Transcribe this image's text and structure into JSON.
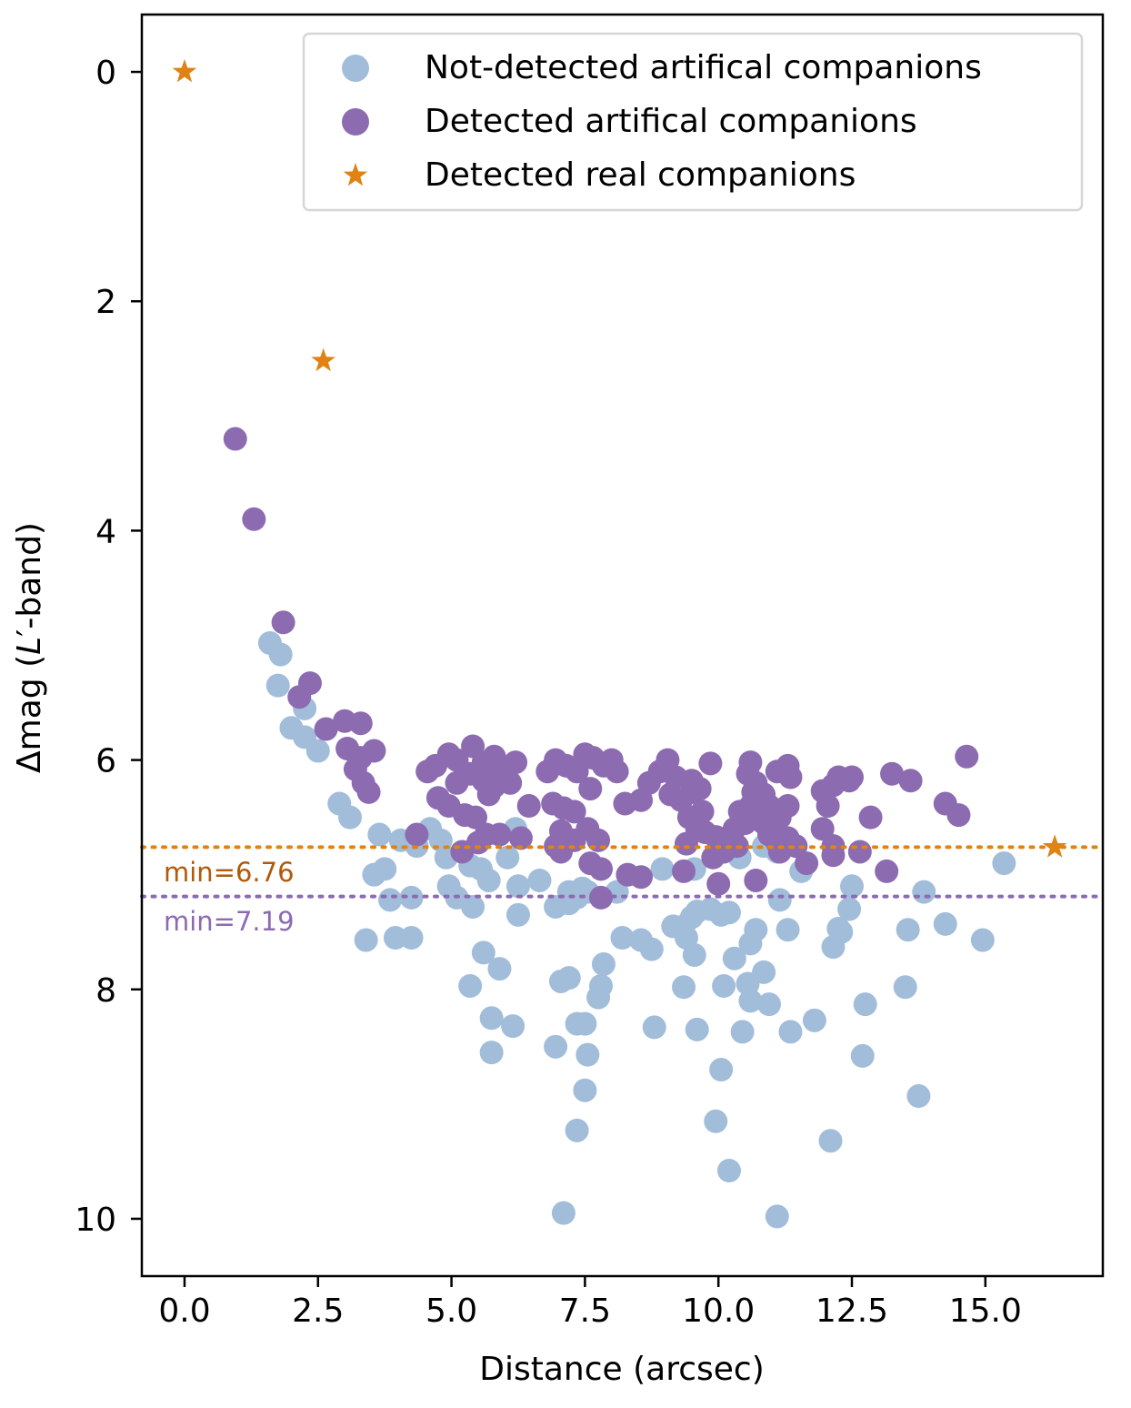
{
  "chart_data": {
    "type": "scatter",
    "xlabel": "Distance (arcsec)",
    "ylabel_parts": [
      "Δmag (",
      "L",
      "′-band)"
    ],
    "xlim": [
      -0.8,
      17.2
    ],
    "ylim": [
      10.5,
      -0.5
    ],
    "xticks": [
      0.0,
      2.5,
      5.0,
      7.5,
      10.0,
      12.5,
      15.0
    ],
    "xtick_labels": [
      "0.0",
      "2.5",
      "5.0",
      "7.5",
      "10.0",
      "12.5",
      "15.0"
    ],
    "yticks": [
      0,
      2,
      4,
      6,
      8,
      10
    ],
    "ytick_labels": [
      "0",
      "2",
      "4",
      "6",
      "8",
      "10"
    ],
    "grid": false,
    "legend_position": "top-right",
    "colors": {
      "not_detected": "#a1bdd9",
      "detected": "#8c6bb1",
      "real": "#e08214",
      "min_real_text": "#b05a0a",
      "min_detected_text": "#8c6bb1"
    },
    "hlines": [
      {
        "name": "min-real-line",
        "y": 6.76,
        "color": "#e08214",
        "label": "min=6.76",
        "label_color": "#b05a0a"
      },
      {
        "name": "min-detected-line",
        "y": 7.19,
        "color": "#8c6bb1",
        "label": "min=7.19",
        "label_color": "#8c6bb1"
      }
    ],
    "series": [
      {
        "name": "Not-detected artifical companions",
        "marker": "circle",
        "color": "#a1bdd9",
        "points": [
          [
            1.6,
            4.98
          ],
          [
            1.8,
            5.08
          ],
          [
            1.75,
            5.35
          ],
          [
            2.25,
            5.55
          ],
          [
            2.0,
            5.72
          ],
          [
            2.25,
            5.8
          ],
          [
            2.5,
            5.92
          ],
          [
            2.9,
            6.38
          ],
          [
            3.1,
            6.5
          ],
          [
            3.65,
            6.65
          ],
          [
            3.75,
            6.95
          ],
          [
            3.55,
            7.0
          ],
          [
            3.85,
            7.22
          ],
          [
            4.25,
            7.2
          ],
          [
            4.05,
            6.7
          ],
          [
            4.35,
            6.75
          ],
          [
            4.6,
            6.6
          ],
          [
            4.8,
            6.7
          ],
          [
            4.9,
            6.85
          ],
          [
            4.95,
            7.1
          ],
          [
            5.1,
            7.2
          ],
          [
            5.4,
            7.28
          ],
          [
            5.35,
            6.92
          ],
          [
            5.55,
            6.95
          ],
          [
            5.7,
            7.05
          ],
          [
            6.05,
            6.85
          ],
          [
            6.2,
            6.6
          ],
          [
            6.25,
            7.1
          ],
          [
            6.65,
            7.05
          ],
          [
            6.25,
            7.35
          ],
          [
            6.95,
            7.28
          ],
          [
            7.2,
            7.15
          ],
          [
            7.35,
            7.2
          ],
          [
            7.45,
            7.12
          ],
          [
            7.55,
            7.15
          ],
          [
            8.1,
            7.15
          ],
          [
            7.2,
            7.25
          ],
          [
            3.4,
            7.57
          ],
          [
            3.95,
            7.55
          ],
          [
            4.25,
            7.55
          ],
          [
            5.6,
            7.68
          ],
          [
            5.35,
            7.97
          ],
          [
            5.9,
            7.82
          ],
          [
            5.75,
            8.25
          ],
          [
            6.15,
            8.32
          ],
          [
            5.75,
            8.55
          ],
          [
            6.95,
            8.5
          ],
          [
            7.05,
            7.93
          ],
          [
            7.2,
            7.9
          ],
          [
            7.35,
            8.3
          ],
          [
            7.5,
            8.3
          ],
          [
            7.85,
            7.78
          ],
          [
            7.8,
            7.97
          ],
          [
            7.75,
            8.07
          ],
          [
            7.55,
            8.57
          ],
          [
            7.5,
            8.88
          ],
          [
            7.35,
            9.23
          ],
          [
            7.1,
            9.95
          ],
          [
            8.2,
            7.55
          ],
          [
            8.55,
            7.57
          ],
          [
            8.75,
            7.65
          ],
          [
            8.8,
            8.33
          ],
          [
            8.95,
            6.95
          ],
          [
            9.15,
            7.45
          ],
          [
            9.35,
            7.45
          ],
          [
            9.4,
            7.55
          ],
          [
            9.5,
            7.37
          ],
          [
            9.6,
            7.32
          ],
          [
            9.55,
            7.7
          ],
          [
            9.35,
            7.98
          ],
          [
            9.6,
            8.35
          ],
          [
            9.55,
            6.95
          ],
          [
            9.85,
            7.3
          ],
          [
            10.05,
            7.35
          ],
          [
            10.2,
            7.33
          ],
          [
            10.3,
            7.73
          ],
          [
            10.1,
            7.97
          ],
          [
            10.05,
            8.7
          ],
          [
            9.95,
            9.15
          ],
          [
            10.2,
            9.58
          ],
          [
            10.45,
            8.37
          ],
          [
            10.6,
            7.6
          ],
          [
            10.7,
            7.48
          ],
          [
            10.55,
            7.95
          ],
          [
            10.6,
            8.1
          ],
          [
            10.85,
            7.85
          ],
          [
            10.95,
            8.13
          ],
          [
            10.4,
            6.85
          ],
          [
            10.85,
            6.75
          ],
          [
            11.1,
            6.8
          ],
          [
            11.15,
            7.22
          ],
          [
            11.3,
            7.48
          ],
          [
            11.35,
            8.37
          ],
          [
            11.1,
            9.98
          ],
          [
            11.55,
            6.97
          ],
          [
            11.8,
            8.27
          ],
          [
            12.1,
            9.32
          ],
          [
            12.15,
            7.63
          ],
          [
            12.25,
            7.47
          ],
          [
            12.3,
            7.5
          ],
          [
            12.45,
            7.3
          ],
          [
            12.5,
            7.1
          ],
          [
            12.75,
            8.13
          ],
          [
            12.7,
            8.58
          ],
          [
            13.5,
            7.98
          ],
          [
            13.55,
            7.48
          ],
          [
            13.85,
            7.15
          ],
          [
            13.75,
            8.93
          ],
          [
            14.25,
            7.43
          ],
          [
            14.95,
            7.57
          ],
          [
            15.35,
            6.9
          ]
        ]
      },
      {
        "name": "Detected artifical companions",
        "marker": "circle",
        "color": "#8c6bb1",
        "points": [
          [
            0.95,
            3.2
          ],
          [
            1.3,
            3.9
          ],
          [
            1.85,
            4.8
          ],
          [
            2.35,
            5.33
          ],
          [
            2.15,
            5.45
          ],
          [
            2.65,
            5.73
          ],
          [
            3.0,
            5.66
          ],
          [
            3.3,
            5.68
          ],
          [
            3.05,
            5.9
          ],
          [
            3.3,
            5.98
          ],
          [
            3.55,
            5.92
          ],
          [
            3.2,
            6.08
          ],
          [
            3.35,
            6.2
          ],
          [
            3.45,
            6.28
          ],
          [
            4.55,
            6.1
          ],
          [
            4.7,
            6.05
          ],
          [
            4.95,
            5.95
          ],
          [
            5.1,
            6.0
          ],
          [
            5.4,
            5.88
          ],
          [
            5.6,
            6.02
          ],
          [
            5.8,
            5.97
          ],
          [
            5.1,
            6.2
          ],
          [
            5.35,
            6.12
          ],
          [
            5.6,
            6.18
          ],
          [
            5.8,
            6.23
          ],
          [
            5.7,
            6.3
          ],
          [
            5.95,
            6.07
          ],
          [
            6.2,
            6.02
          ],
          [
            6.1,
            6.2
          ],
          [
            4.75,
            6.33
          ],
          [
            4.95,
            6.4
          ],
          [
            5.25,
            6.48
          ],
          [
            5.45,
            6.5
          ],
          [
            6.45,
            6.4
          ],
          [
            4.35,
            6.65
          ],
          [
            5.2,
            6.8
          ],
          [
            5.5,
            6.72
          ],
          [
            5.65,
            6.65
          ],
          [
            5.9,
            6.65
          ],
          [
            6.3,
            6.68
          ],
          [
            6.8,
            6.1
          ],
          [
            6.95,
            6.0
          ],
          [
            7.15,
            6.05
          ],
          [
            7.35,
            6.1
          ],
          [
            7.5,
            5.95
          ],
          [
            7.65,
            5.98
          ],
          [
            7.6,
            6.25
          ],
          [
            7.85,
            6.05
          ],
          [
            8.0,
            6.0
          ],
          [
            8.1,
            6.1
          ],
          [
            6.9,
            6.38
          ],
          [
            7.1,
            6.42
          ],
          [
            7.3,
            6.45
          ],
          [
            7.05,
            6.62
          ],
          [
            7.3,
            6.7
          ],
          [
            7.55,
            6.6
          ],
          [
            7.75,
            6.7
          ],
          [
            6.95,
            6.75
          ],
          [
            7.05,
            6.8
          ],
          [
            7.6,
            6.9
          ],
          [
            7.8,
            6.95
          ],
          [
            7.8,
            7.2
          ],
          [
            8.25,
            6.38
          ],
          [
            8.3,
            7.0
          ],
          [
            8.55,
            6.35
          ],
          [
            8.55,
            7.02
          ],
          [
            8.7,
            6.2
          ],
          [
            8.9,
            6.1
          ],
          [
            9.05,
            6.0
          ],
          [
            9.2,
            6.15
          ],
          [
            9.1,
            6.3
          ],
          [
            9.3,
            6.35
          ],
          [
            9.5,
            6.18
          ],
          [
            9.5,
            6.28
          ],
          [
            9.65,
            6.25
          ],
          [
            9.7,
            6.45
          ],
          [
            9.45,
            6.5
          ],
          [
            9.6,
            6.6
          ],
          [
            9.75,
            6.63
          ],
          [
            9.4,
            6.73
          ],
          [
            9.85,
            6.03
          ],
          [
            9.95,
            6.67
          ],
          [
            10.1,
            6.7
          ],
          [
            10.3,
            6.6
          ],
          [
            10.5,
            6.55
          ],
          [
            10.6,
            6.4
          ],
          [
            10.65,
            6.28
          ],
          [
            10.7,
            6.2
          ],
          [
            10.55,
            6.12
          ],
          [
            10.6,
            6.02
          ],
          [
            10.85,
            6.3
          ],
          [
            10.95,
            6.4
          ],
          [
            11.1,
            6.1
          ],
          [
            11.3,
            6.05
          ],
          [
            11.35,
            6.15
          ],
          [
            11.3,
            6.4
          ],
          [
            11.15,
            6.5
          ],
          [
            10.85,
            6.55
          ],
          [
            10.95,
            6.65
          ],
          [
            11.1,
            6.72
          ],
          [
            11.3,
            6.68
          ],
          [
            11.45,
            6.75
          ],
          [
            11.15,
            6.8
          ],
          [
            11.65,
            6.9
          ],
          [
            11.95,
            6.6
          ],
          [
            12.05,
            6.4
          ],
          [
            11.95,
            6.27
          ],
          [
            12.15,
            6.22
          ],
          [
            12.25,
            6.15
          ],
          [
            12.45,
            6.18
          ],
          [
            12.5,
            6.15
          ],
          [
            12.15,
            6.75
          ],
          [
            12.15,
            6.83
          ],
          [
            12.65,
            6.8
          ],
          [
            12.85,
            6.5
          ],
          [
            13.15,
            6.97
          ],
          [
            13.25,
            6.12
          ],
          [
            13.6,
            6.18
          ],
          [
            14.25,
            6.38
          ],
          [
            14.5,
            6.48
          ],
          [
            14.65,
            5.97
          ],
          [
            10.1,
            6.8
          ],
          [
            10.35,
            6.75
          ],
          [
            10.0,
            7.08
          ],
          [
            10.7,
            7.05
          ],
          [
            9.35,
            6.97
          ],
          [
            9.9,
            6.85
          ],
          [
            10.4,
            6.45
          ]
        ]
      },
      {
        "name": "Detected real companions",
        "marker": "star",
        "color": "#e08214",
        "points": [
          [
            0.0,
            0.0
          ],
          [
            2.6,
            2.52
          ],
          [
            16.3,
            6.76
          ]
        ]
      }
    ]
  }
}
